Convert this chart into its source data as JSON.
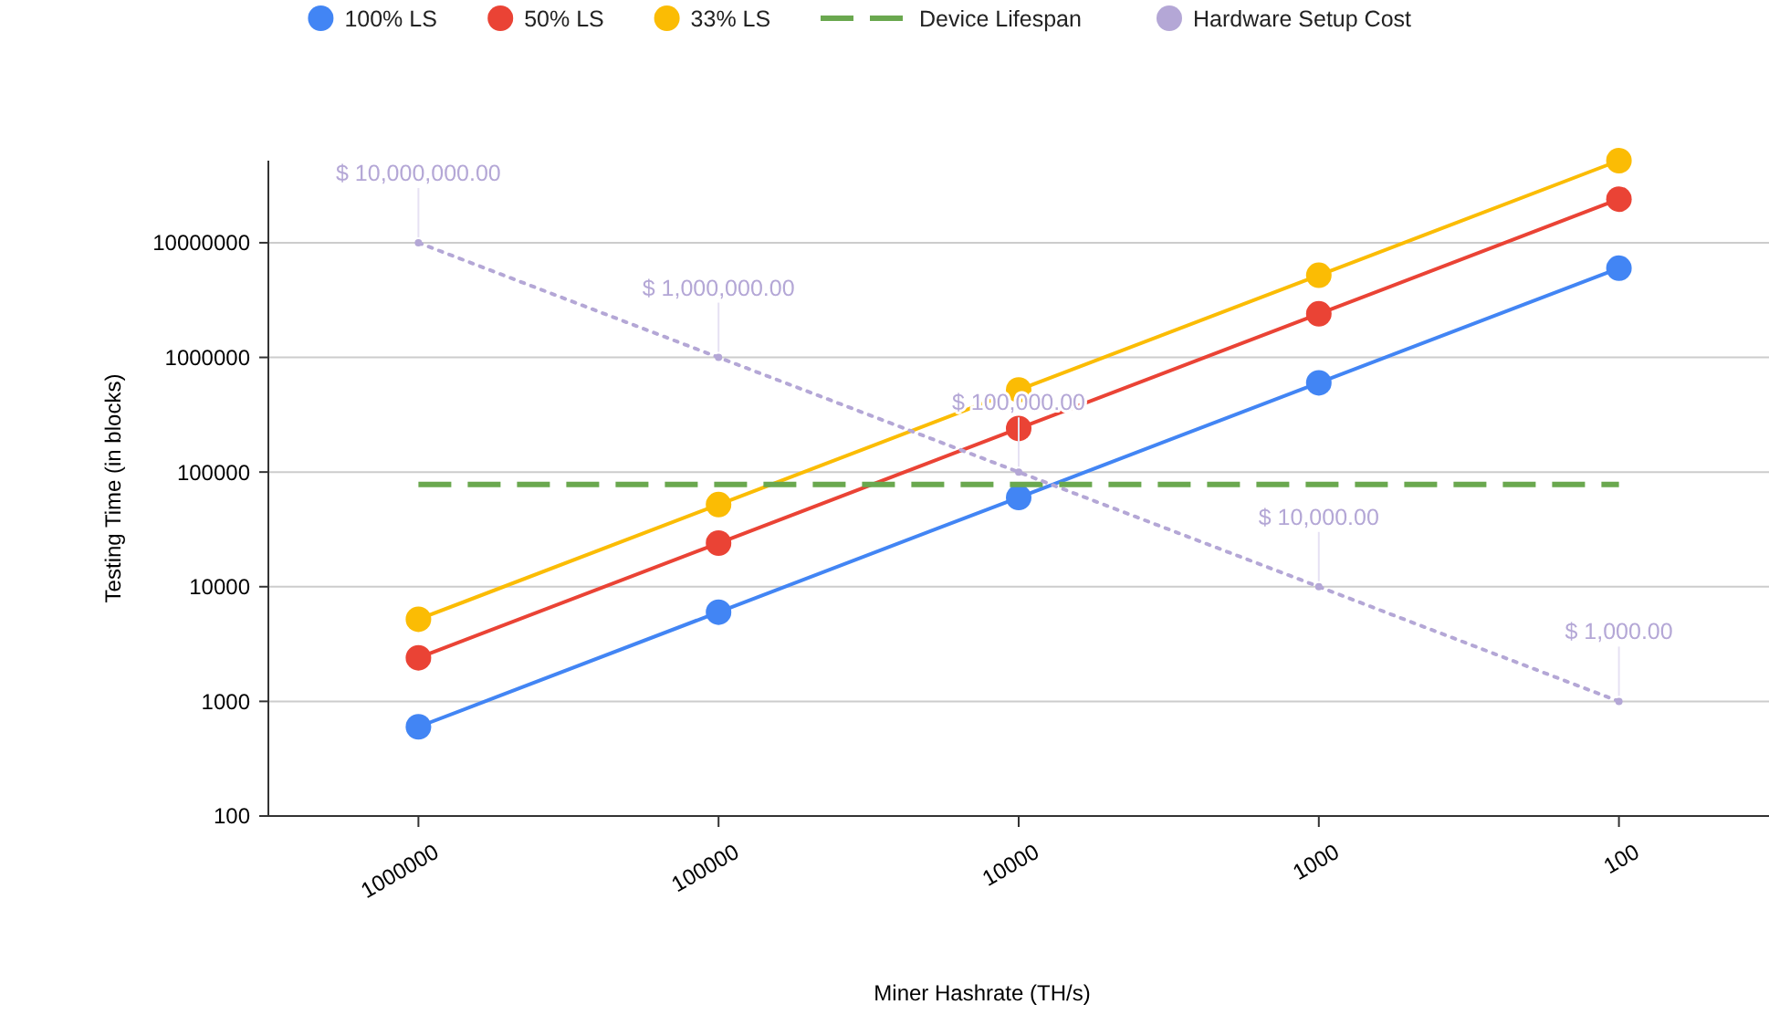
{
  "chart_data": {
    "type": "line",
    "xlabel": "Miner Hashrate (TH/s)",
    "ylabel": "Testing Time (in blocks)",
    "categories": [
      "1000000",
      "100000",
      "10000",
      "1000",
      "100"
    ],
    "log": "y",
    "ylim": [
      100,
      52000000
    ],
    "yticks": [
      100,
      1000,
      10000,
      100000,
      1000000,
      10000000
    ],
    "grid": "y",
    "legend": "top",
    "series": [
      {
        "name": "100% LS",
        "color": "#4285f4",
        "marker": "circle",
        "line_style": "solid",
        "values": [
          600,
          6000,
          60000,
          600000,
          6000000
        ]
      },
      {
        "name": "50% LS",
        "color": "#ea4335",
        "marker": "circle",
        "line_style": "solid",
        "values": [
          2400,
          24000,
          240000,
          2400000,
          24000000
        ]
      },
      {
        "name": "33% LS",
        "color": "#fbbc04",
        "marker": "circle",
        "line_style": "solid",
        "values": [
          5200,
          52000,
          520000,
          5200000,
          52000000
        ]
      },
      {
        "name": "Device Lifespan",
        "color": "#6aa84f",
        "marker": "none",
        "line_style": "dashed",
        "values": [
          78000,
          78000,
          78000,
          78000,
          78000
        ]
      },
      {
        "name": "Hardware Setup Cost",
        "color": "#b4a7d6",
        "marker": "circle",
        "line_style": "dotted",
        "values": [
          10000000,
          1000000,
          100000,
          10000,
          1000
        ],
        "value_labels": [
          "$ 10,000,000.00",
          "$ 1,000,000.00",
          "$ 100,000.00",
          "$ 10,000.00",
          "$ 1,000.00"
        ]
      }
    ]
  }
}
